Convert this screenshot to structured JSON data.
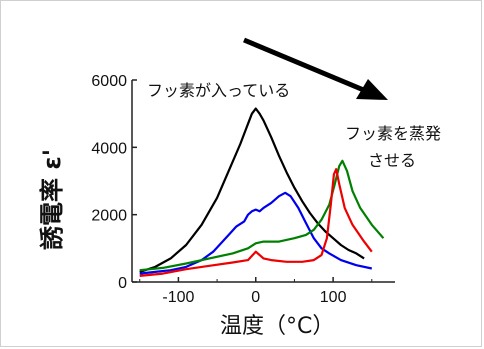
{
  "chart_data": {
    "type": "line",
    "xlabel": "温度（°C）",
    "ylabel": "誘電率 ε'",
    "xlim": [
      -160,
      180
    ],
    "ylim": [
      0,
      6000
    ],
    "x_ticks": [
      "-100",
      "0",
      "100"
    ],
    "y_ticks": [
      "0",
      "2000",
      "4000",
      "6000"
    ],
    "annotations": {
      "with_fluorine": "フッ素が入っている",
      "evaporate_line1": "フッ素を蒸発",
      "evaporate_line2": "させる"
    },
    "series": [
      {
        "color": "#000000",
        "points": [
          [
            -150,
            300
          ],
          [
            -130,
            450
          ],
          [
            -110,
            700
          ],
          [
            -90,
            1100
          ],
          [
            -70,
            1700
          ],
          [
            -50,
            2500
          ],
          [
            -35,
            3300
          ],
          [
            -20,
            4100
          ],
          [
            -10,
            4700
          ],
          [
            -5,
            5000
          ],
          [
            0,
            5150
          ],
          [
            5,
            5000
          ],
          [
            10,
            4800
          ],
          [
            20,
            4300
          ],
          [
            30,
            3750
          ],
          [
            40,
            3250
          ],
          [
            50,
            2800
          ],
          [
            60,
            2400
          ],
          [
            70,
            2050
          ],
          [
            80,
            1750
          ],
          [
            90,
            1500
          ],
          [
            100,
            1300
          ],
          [
            110,
            1100
          ],
          [
            120,
            950
          ],
          [
            130,
            850
          ],
          [
            140,
            700
          ]
        ]
      },
      {
        "color": "#0000ee",
        "points": [
          [
            -150,
            250
          ],
          [
            -130,
            300
          ],
          [
            -110,
            350
          ],
          [
            -90,
            450
          ],
          [
            -70,
            650
          ],
          [
            -55,
            900
          ],
          [
            -45,
            1150
          ],
          [
            -35,
            1400
          ],
          [
            -25,
            1650
          ],
          [
            -15,
            1800
          ],
          [
            -10,
            2000
          ],
          [
            -5,
            2100
          ],
          [
            0,
            2150
          ],
          [
            5,
            2100
          ],
          [
            10,
            2200
          ],
          [
            20,
            2350
          ],
          [
            30,
            2550
          ],
          [
            38,
            2650
          ],
          [
            45,
            2550
          ],
          [
            55,
            2200
          ],
          [
            65,
            1750
          ],
          [
            75,
            1300
          ],
          [
            85,
            1000
          ],
          [
            95,
            850
          ],
          [
            110,
            650
          ],
          [
            130,
            500
          ],
          [
            150,
            400
          ]
        ]
      },
      {
        "color": "#008000",
        "points": [
          [
            -150,
            350
          ],
          [
            -120,
            420
          ],
          [
            -90,
            550
          ],
          [
            -60,
            700
          ],
          [
            -30,
            850
          ],
          [
            -10,
            1000
          ],
          [
            0,
            1150
          ],
          [
            10,
            1200
          ],
          [
            30,
            1200
          ],
          [
            50,
            1300
          ],
          [
            65,
            1400
          ],
          [
            75,
            1550
          ],
          [
            85,
            1850
          ],
          [
            95,
            2300
          ],
          [
            102,
            2900
          ],
          [
            108,
            3450
          ],
          [
            112,
            3600
          ],
          [
            118,
            3300
          ],
          [
            125,
            2700
          ],
          [
            135,
            2200
          ],
          [
            150,
            1700
          ],
          [
            165,
            1300
          ]
        ]
      },
      {
        "color": "#ee0000",
        "points": [
          [
            -150,
            180
          ],
          [
            -120,
            250
          ],
          [
            -90,
            380
          ],
          [
            -60,
            480
          ],
          [
            -30,
            580
          ],
          [
            -10,
            650
          ],
          [
            0,
            900
          ],
          [
            10,
            700
          ],
          [
            20,
            650
          ],
          [
            40,
            600
          ],
          [
            60,
            600
          ],
          [
            75,
            650
          ],
          [
            85,
            800
          ],
          [
            92,
            1300
          ],
          [
            97,
            2300
          ],
          [
            101,
            3200
          ],
          [
            104,
            3350
          ],
          [
            108,
            2900
          ],
          [
            115,
            2200
          ],
          [
            125,
            1700
          ],
          [
            140,
            1200
          ],
          [
            150,
            900
          ]
        ]
      }
    ]
  }
}
